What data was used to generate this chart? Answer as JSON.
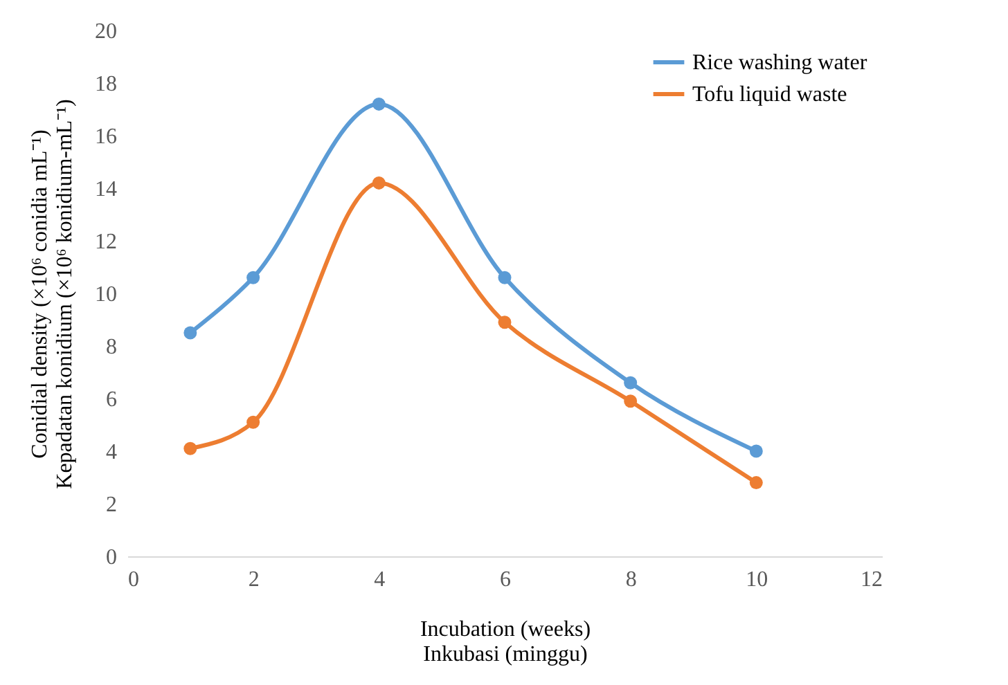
{
  "chart_data": {
    "type": "line",
    "xlabel": "Incubation (weeks)\nInkubasi (minggu)",
    "ylabel": "Conidial  density (×10⁶ conidia mL⁻¹)\nKepadatan konidium (×10⁶ konidium-mL⁻¹)",
    "x": [
      1,
      2,
      4,
      6,
      8,
      10
    ],
    "series": [
      {
        "name": "Rice washing water",
        "color": "#5b9bd5",
        "values": [
          8.5,
          10.6,
          17.2,
          10.6,
          6.6,
          4.0
        ]
      },
      {
        "name": "Tofu liquid waste",
        "color": "#ed7d31",
        "values": [
          4.1,
          5.1,
          14.2,
          8.9,
          5.9,
          2.8
        ]
      }
    ],
    "xlim": [
      0,
      12
    ],
    "xticks": [
      0,
      2,
      4,
      6,
      8,
      10,
      12
    ],
    "ylim": [
      0,
      20
    ],
    "yticks": [
      0,
      2,
      4,
      6,
      8,
      10,
      12,
      14,
      16,
      18,
      20
    ],
    "grid": false,
    "legend": "top right",
    "marker": "circle",
    "line_style": "solid"
  }
}
